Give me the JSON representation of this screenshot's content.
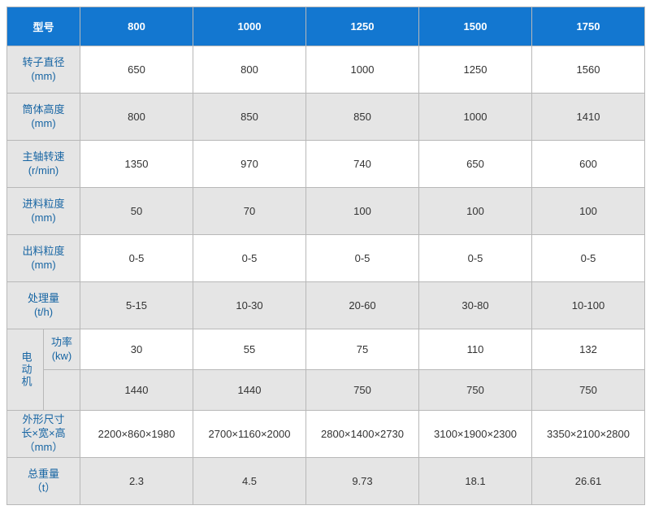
{
  "header": {
    "model_label": "型号",
    "models": [
      "800",
      "1000",
      "1250",
      "1500",
      "1750"
    ]
  },
  "rows": [
    {
      "label": "转子直径\n(mm)",
      "shade": "white",
      "cells": [
        "650",
        "800",
        "1000",
        "1250",
        "1560"
      ]
    },
    {
      "label": "筒体高度\n(mm)",
      "shade": "gray",
      "cells": [
        "800",
        "850",
        "850",
        "1000",
        "1410"
      ]
    },
    {
      "label": "主轴转速\n(r/min)",
      "shade": "white",
      "cells": [
        "1350",
        "970",
        "740",
        "650",
        "600"
      ]
    },
    {
      "label": "进料粒度\n(mm)",
      "shade": "gray",
      "cells": [
        "50",
        "70",
        "100",
        "100",
        "100"
      ]
    },
    {
      "label": "出料粒度\n(mm)",
      "shade": "white",
      "cells": [
        "0-5",
        "0-5",
        "0-5",
        "0-5",
        "0-5"
      ]
    },
    {
      "label": "处理量\n(t/h)",
      "shade": "gray",
      "cells": [
        "5-15",
        "10-30",
        "20-60",
        "30-80",
        "10-100"
      ]
    }
  ],
  "motor": {
    "group_label": "电动机",
    "power_label": "功率\n(kw)",
    "power": {
      "shade": "white",
      "cells": [
        "30",
        "55",
        "75",
        "110",
        "132"
      ]
    },
    "speed": {
      "shade": "gray",
      "cells": [
        "1440",
        "1440",
        "750",
        "750",
        "750"
      ]
    }
  },
  "tail": [
    {
      "label": "外形尺寸\n长×宽×高\n（mm）",
      "shade": "white",
      "cells": [
        "2200×860×1980",
        "2700×1160×2000",
        "2800×1400×2730",
        "3100×1900×2300",
        "3350×2100×2800"
      ]
    },
    {
      "label": "总重量\n（t）",
      "shade": "gray",
      "cells": [
        "2.3",
        "4.5",
        "9.73",
        "18.1",
        "26.61"
      ]
    }
  ],
  "colors": {
    "header_bg": "#1377d0",
    "header_fg": "#ffffff",
    "label_bg": "#e5e5e5",
    "label_fg": "#1765a3",
    "gray_bg": "#e5e5e5",
    "white_bg": "#ffffff",
    "border": "#b8b8b8"
  }
}
